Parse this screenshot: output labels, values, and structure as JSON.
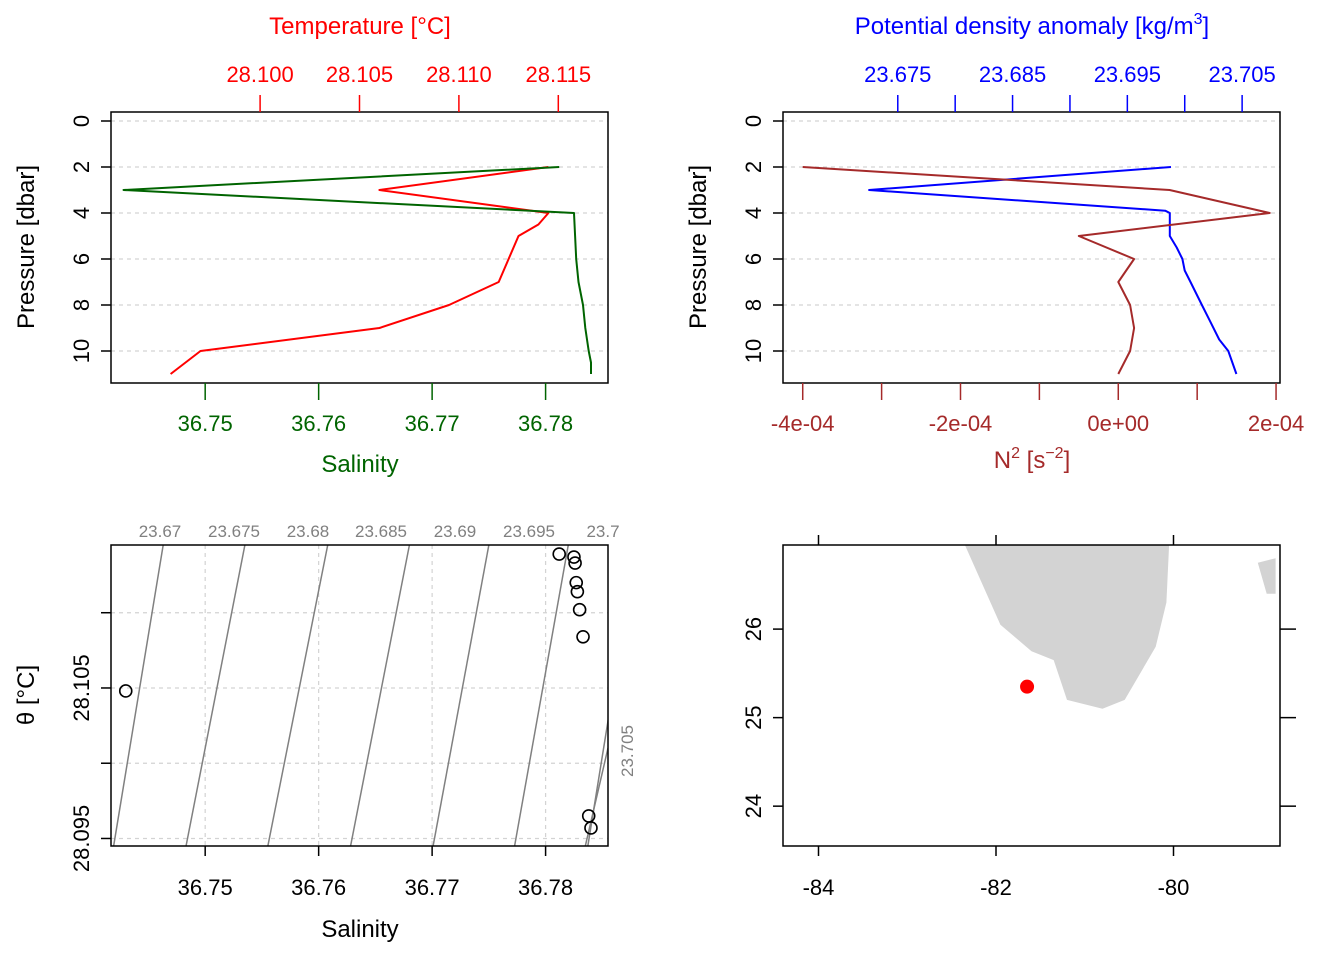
{
  "colors": {
    "temperature": "#ff0000",
    "salinity": "#006400",
    "density": "#0000ff",
    "n2": "#a52a2a",
    "isopycnal": "#808080",
    "grid": "#d3d3d3",
    "land": "#d3d3d3",
    "station": "#ff0000",
    "axis": "#000000"
  },
  "chart_data": [
    {
      "type": "line",
      "panel": "salinity-temperature-profile",
      "ylabel": "Pressure [dbar]",
      "ylim": [
        11,
        0
      ],
      "ytick_labels": [
        "0",
        "2",
        "4",
        "6",
        "8",
        "10"
      ],
      "top_axis_label": "Temperature [°C]",
      "top_axis_range": [
        28.0925,
        28.1175
      ],
      "top_tick_labels": [
        "28.100",
        "28.105",
        "28.110",
        "28.115"
      ],
      "bottom_axis_label": "Salinity",
      "bottom_axis_range": [
        36.7417,
        36.7855
      ],
      "bottom_tick_labels": [
        "36.75",
        "36.76",
        "36.77",
        "36.78"
      ],
      "grid": true,
      "series": [
        {
          "name": "Temperature [°C]",
          "color_key": "temperature",
          "axis": "top",
          "x": [
            28.1145,
            28.106,
            28.1145,
            28.114,
            28.113,
            28.1125,
            28.112,
            28.1095,
            28.106,
            28.097,
            28.0955
          ],
          "y": [
            2,
            3,
            4,
            4.5,
            5,
            6,
            7,
            8,
            9,
            10,
            11
          ]
        },
        {
          "name": "Salinity",
          "color_key": "salinity",
          "axis": "bottom",
          "x": [
            36.7812,
            36.7428,
            36.7825,
            36.7826,
            36.7827,
            36.7829,
            36.7833,
            36.7835,
            36.7838,
            36.784,
            36.784
          ],
          "y": [
            2,
            3,
            4,
            5,
            6,
            7,
            8,
            9,
            10,
            10.5,
            11
          ]
        }
      ]
    },
    {
      "type": "line",
      "panel": "density-n2-profile",
      "ylabel": "Pressure [dbar]",
      "ylim": [
        11,
        0
      ],
      "ytick_labels": [
        "0",
        "2",
        "4",
        "6",
        "8",
        "10"
      ],
      "top_axis_label": "Potential density anomaly [kg/m",
      "top_axis_label_sup": "3",
      "top_axis_label_end": "]",
      "top_axis_range": [
        23.665,
        23.7083
      ],
      "top_tick_labels": [
        "23.675",
        "23.685",
        "23.695",
        "23.705"
      ],
      "bottom_axis_label": "N",
      "bottom_axis_label_sup": "2",
      "bottom_axis_label_mid": " [s",
      "bottom_axis_label_sup2": "−2",
      "bottom_axis_label_end": "]",
      "bottom_axis_range": [
        -0.000425,
        0.000205
      ],
      "bottom_tick_labels": [
        "-4e-04",
        "-2e-04",
        "0e+00",
        "2e-04"
      ],
      "grid": true,
      "series": [
        {
          "name": "Potential density anomaly",
          "color_key": "density",
          "axis": "top",
          "x": [
            23.6988,
            23.6725,
            23.6983,
            23.6987,
            23.6987,
            23.6993,
            23.6998,
            23.7,
            23.7005,
            23.7015,
            23.7022,
            23.703,
            23.7038,
            23.7045
          ],
          "y": [
            2,
            3,
            3.9,
            4.0,
            5.0,
            5.5,
            6.0,
            6.5,
            7.0,
            8.0,
            8.7,
            9.5,
            10.0,
            11
          ]
        },
        {
          "name": "N2",
          "color_key": "n2",
          "axis": "bottom",
          "x": [
            -0.0004,
            6.5e-05,
            0.000192,
            -5e-05,
            2e-05,
            0.0,
            1.5e-05,
            2e-05,
            1.5e-05,
            0.0
          ],
          "y": [
            2,
            3,
            4,
            5,
            6,
            7,
            8,
            9,
            10,
            11
          ]
        }
      ]
    },
    {
      "type": "scatter",
      "panel": "ts-diagram",
      "xlabel": "Salinity",
      "ylabel": "θ [°C]",
      "xlim": [
        36.7417,
        36.7855
      ],
      "ylim": [
        28.0945,
        28.1145
      ],
      "xtick_labels": [
        "36.75",
        "36.76",
        "36.77",
        "36.78"
      ],
      "ytick_labels": [
        "28.095",
        "28.105"
      ],
      "yticks_all": [
        28.095,
        28.1,
        28.105,
        28.11
      ],
      "grid": true,
      "isopycnal_labels": [
        "23.67",
        "23.675",
        "23.68",
        "23.685",
        "23.69",
        "23.695",
        "23.7",
        "23.705"
      ],
      "isopycnal_slope_per_salinity": 3.5,
      "isopycnal_anchor_salinity_at_top": [
        36.7463,
        36.7535,
        36.7608,
        36.768,
        36.775,
        36.782,
        36.788
      ],
      "isopycnal_anchor_salinity_at_bottom": [
        36.7437,
        36.75,
        36.7572,
        36.7645,
        36.7718,
        36.779,
        36.7855
      ],
      "points": [
        {
          "s": 36.743,
          "t": 28.1048
        },
        {
          "s": 36.7812,
          "t": 28.1139
        },
        {
          "s": 36.7825,
          "t": 28.1137
        },
        {
          "s": 36.7826,
          "t": 28.1133
        },
        {
          "s": 36.7827,
          "t": 28.112
        },
        {
          "s": 36.7828,
          "t": 28.1114
        },
        {
          "s": 36.783,
          "t": 28.1102
        },
        {
          "s": 36.7833,
          "t": 28.1084
        },
        {
          "s": 36.7838,
          "t": 28.0965
        },
        {
          "s": 36.784,
          "t": 28.0957
        }
      ]
    },
    {
      "type": "map",
      "panel": "station-map",
      "xlim": [
        -84.4,
        -78.8
      ],
      "ylim": [
        23.55,
        26.95
      ],
      "xtick_labels": [
        "-84",
        "-82",
        "-80"
      ],
      "ytick_labels": [
        "24",
        "25",
        "26"
      ],
      "xticks": [
        -84,
        -82,
        -80
      ],
      "yticks": [
        24,
        25,
        26
      ],
      "station": {
        "lon": -81.65,
        "lat": 25.35
      },
      "land_florida": [
        [
          -82.35,
          26.95
        ],
        [
          -81.95,
          26.05
        ],
        [
          -81.6,
          25.75
        ],
        [
          -81.35,
          25.65
        ],
        [
          -81.2,
          25.2
        ],
        [
          -80.8,
          25.1
        ],
        [
          -80.55,
          25.2
        ],
        [
          -80.2,
          25.8
        ],
        [
          -80.08,
          26.3
        ],
        [
          -80.05,
          26.95
        ]
      ],
      "land_east": [
        [
          -79.05,
          26.75
        ],
        [
          -78.85,
          26.8
        ],
        [
          -78.85,
          26.4
        ],
        [
          -78.95,
          26.4
        ]
      ]
    }
  ]
}
